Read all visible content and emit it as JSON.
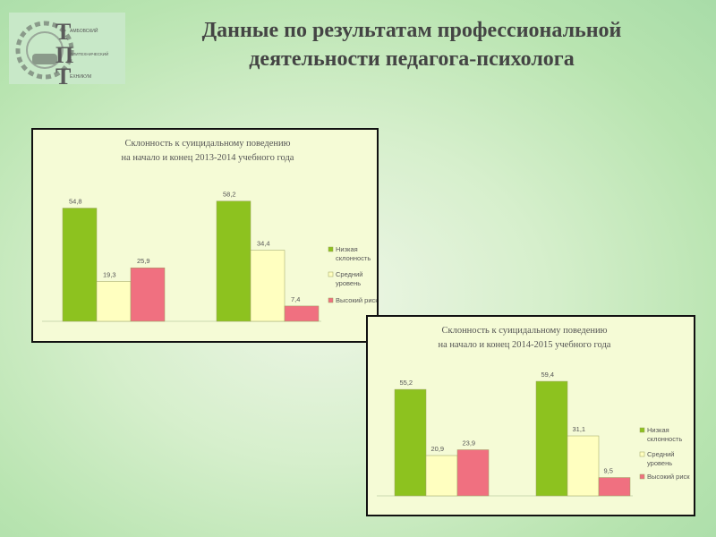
{
  "slide": {
    "title_line1": "Данные по результатам профессиональной",
    "title_line2": "деятельности педагога-психолога"
  },
  "logo": {
    "line1": "АМБОВСКИЙ",
    "line2": "ОЛИТЕХНИЧЕСКИЙ",
    "line3": "ЕХНИКУМ"
  },
  "chart_data": [
    {
      "type": "bar",
      "title": [
        "Склонность к суицидальному поведению",
        "на начало и конец 2013-2014 учебного года"
      ],
      "groups": 2,
      "series": [
        {
          "name": "Низкая склонность",
          "values": [
            54.8,
            58.2
          ],
          "color": "#8dc21f"
        },
        {
          "name": "Средний уровень",
          "values": [
            19.3,
            34.4
          ],
          "color": "#ffffc0"
        },
        {
          "name": "Высокий риск",
          "values": [
            25.9,
            7.4
          ],
          "color": "#f07080"
        }
      ],
      "data_labels": [
        [
          "54,8",
          "58,2"
        ],
        [
          "19,3",
          "34,4"
        ],
        [
          "25,9",
          "7,4"
        ]
      ],
      "legend_position": "right",
      "ylim": [
        0,
        65
      ],
      "grid": false
    },
    {
      "type": "bar",
      "title": [
        "Склонность к суицидальному поведению",
        "на начало и конец 2014-2015 учебного года"
      ],
      "groups": 2,
      "series": [
        {
          "name": "Низкая склонность",
          "values": [
            55.2,
            59.4
          ],
          "color": "#8dc21f"
        },
        {
          "name": "Средний уровень",
          "values": [
            20.9,
            31.1
          ],
          "color": "#ffffc0"
        },
        {
          "name": "Высокий риск",
          "values": [
            23.9,
            9.5
          ],
          "color": "#f07080"
        }
      ],
      "data_labels": [
        [
          "55,2",
          "59,4"
        ],
        [
          "20,9",
          "31,1"
        ],
        [
          "23,9",
          "9,5"
        ]
      ],
      "legend_position": "right",
      "ylim": [
        0,
        65
      ],
      "grid": false
    }
  ]
}
